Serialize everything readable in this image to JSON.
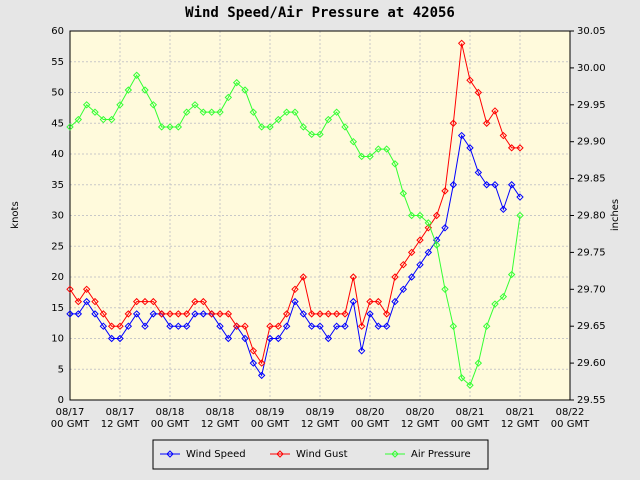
{
  "chart_data": {
    "type": "line",
    "title": "Wind Speed/Air Pressure at 42056",
    "y_label": "knots",
    "y2_label": "inches",
    "x": [
      0,
      2,
      4,
      6,
      8,
      10,
      12,
      14,
      16,
      18,
      20,
      22,
      24,
      26,
      28,
      30,
      32,
      34,
      36,
      38,
      40,
      42,
      44,
      46,
      48,
      50,
      52,
      54,
      56,
      58,
      60,
      62,
      64,
      66,
      68,
      70,
      72,
      74,
      76,
      78,
      80,
      82,
      84,
      86,
      88,
      90,
      92,
      94,
      96,
      98,
      100,
      102,
      104,
      106,
      108
    ],
    "series": [
      {
        "name": "Wind Speed",
        "color": "#0000ff",
        "values": [
          14,
          14,
          16,
          14,
          12,
          10,
          10,
          12,
          14,
          12,
          14,
          14,
          12,
          12,
          12,
          14,
          14,
          14,
          12,
          10,
          12,
          10,
          6,
          4,
          10,
          10,
          12,
          16,
          14,
          12,
          12,
          10,
          12,
          12,
          16,
          8,
          14,
          12,
          12,
          16,
          18,
          20,
          22,
          24,
          26,
          28,
          35,
          43,
          41,
          37,
          35,
          35,
          31,
          35,
          33
        ]
      },
      {
        "name": "Wind Gust",
        "color": "#ff0000",
        "values": [
          18,
          16,
          18,
          16,
          14,
          12,
          12,
          14,
          16,
          16,
          16,
          14,
          14,
          14,
          14,
          16,
          16,
          14,
          14,
          14,
          12,
          12,
          8,
          6,
          12,
          12,
          14,
          18,
          20,
          14,
          14,
          14,
          14,
          14,
          20,
          12,
          16,
          16,
          14,
          20,
          22,
          24,
          26,
          28,
          30,
          34,
          45,
          58,
          52,
          50,
          45,
          47,
          43,
          41,
          41
        ]
      },
      {
        "name": "Air Pressure",
        "color": "#33ff33",
        "axis": "y2",
        "values": [
          29.92,
          29.93,
          29.95,
          29.94,
          29.93,
          29.93,
          29.95,
          29.97,
          29.99,
          29.97,
          29.95,
          29.92,
          29.92,
          29.92,
          29.94,
          29.95,
          29.94,
          29.94,
          29.94,
          29.96,
          29.98,
          29.97,
          29.94,
          29.92,
          29.92,
          29.93,
          29.94,
          29.94,
          29.92,
          29.91,
          29.91,
          29.93,
          29.94,
          29.92,
          29.9,
          29.88,
          29.88,
          29.89,
          29.89,
          29.87,
          29.83,
          29.8,
          29.8,
          29.79,
          29.76,
          29.7,
          29.65,
          29.58,
          29.57,
          29.6,
          29.65,
          29.68,
          29.69,
          29.72,
          29.8
        ]
      }
    ],
    "xlim": [
      0,
      120
    ],
    "xticks": [
      {
        "value": 0,
        "label": "08/17 00 GMT"
      },
      {
        "value": 12,
        "label": "08/17 12 GMT"
      },
      {
        "value": 24,
        "label": "08/18 00 GMT"
      },
      {
        "value": 36,
        "label": "08/18 12 GMT"
      },
      {
        "value": 48,
        "label": "08/19 00 GMT"
      },
      {
        "value": 60,
        "label": "08/19 12 GMT"
      },
      {
        "value": 72,
        "label": "08/20 00 GMT"
      },
      {
        "value": 84,
        "label": "08/20 12 GMT"
      },
      {
        "value": 96,
        "label": "08/21 00 GMT"
      },
      {
        "value": 108,
        "label": "08/21 12 GMT"
      },
      {
        "value": 120,
        "label": "08/22 00 GMT"
      }
    ],
    "ylim": [
      0,
      60
    ],
    "yticks": [
      0,
      5,
      10,
      15,
      20,
      25,
      30,
      35,
      40,
      45,
      50,
      55,
      60
    ],
    "y2lim": [
      29.55,
      30.05
    ],
    "y2ticks": [
      29.55,
      {
        "value": 29.6,
        "label": "29.60"
      },
      29.65,
      {
        "value": 29.7,
        "label": "29.70"
      },
      29.75,
      {
        "value": 29.8,
        "label": "29.80"
      },
      29.85,
      {
        "value": 29.9,
        "label": "29.90"
      },
      29.95,
      {
        "value": 30,
        "label": "30.00"
      },
      30.05
    ],
    "grid": true
  }
}
